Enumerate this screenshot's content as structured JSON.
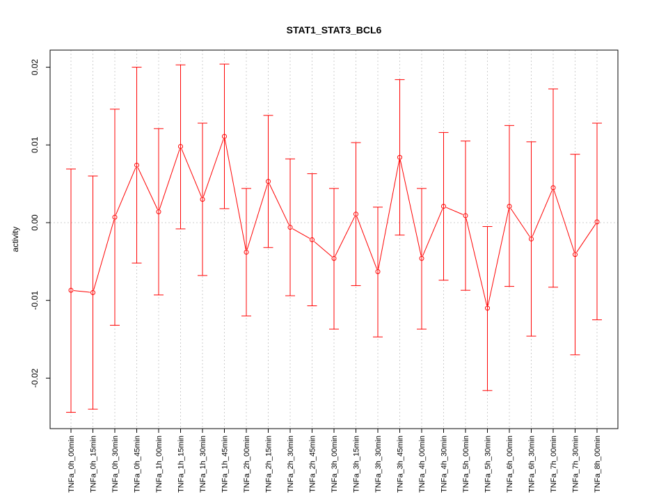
{
  "chart_data": {
    "type": "line",
    "title": "STAT1_STAT3_BCL6",
    "xlabel": "",
    "ylabel": "activity",
    "categories": [
      "TNFa_0h_00min",
      "TNFa_0h_15min",
      "TNFa_0h_30min",
      "TNFa_0h_45min",
      "TNFa_1h_00min",
      "TNFa_1h_15min",
      "TNFa_1h_30min",
      "TNFa_1h_45min",
      "TNFa_2h_00min",
      "TNFa_2h_15min",
      "TNFa_2h_30min",
      "TNFa_2h_45min",
      "TNFa_3h_00min",
      "TNFa_3h_15min",
      "TNFa_3h_30min",
      "TNFa_3h_45min",
      "TNFa_4h_00min",
      "TNFa_4h_30min",
      "TNFa_5h_00min",
      "TNFa_5h_30min",
      "TNFa_6h_00min",
      "TNFa_6h_30min",
      "TNFa_7h_00min",
      "TNFa_7h_30min",
      "TNFa_8h_00min"
    ],
    "series": [
      {
        "color": "#ff0000",
        "values": [
          -0.0087,
          -0.009,
          0.0007,
          0.0074,
          0.0014,
          0.0098,
          0.003,
          0.0111,
          -0.0038,
          0.0053,
          -0.0006,
          -0.0022,
          -0.0046,
          0.0011,
          -0.0063,
          0.0084,
          -0.0046,
          0.0021,
          0.0009,
          -0.011,
          0.0021,
          -0.0021,
          0.0045,
          -0.0041,
          0.0001
        ],
        "upper": [
          0.0069,
          0.006,
          0.0146,
          0.02,
          0.0121,
          0.0203,
          0.0128,
          0.0204,
          0.0044,
          0.0138,
          0.0082,
          0.0063,
          0.0044,
          0.0103,
          0.002,
          0.0184,
          0.0044,
          0.0116,
          0.0105,
          -0.0005,
          0.0125,
          0.0104,
          0.0172,
          0.0088,
          0.0128
        ],
        "lower": [
          -0.0244,
          -0.024,
          -0.0132,
          -0.0052,
          -0.0093,
          -0.0008,
          -0.0068,
          0.0018,
          -0.012,
          -0.0032,
          -0.0094,
          -0.0107,
          -0.0137,
          -0.0081,
          -0.0147,
          -0.0016,
          -0.0137,
          -0.0074,
          -0.0087,
          -0.0216,
          -0.0082,
          -0.0146,
          -0.0083,
          -0.017,
          -0.0125
        ]
      }
    ],
    "ylim": [
      -0.0265,
      0.0222
    ],
    "yticks": [
      -0.02,
      -0.01,
      0.0,
      0.01,
      0.02
    ],
    "ytick_labels": [
      "-0.02",
      "-0.01",
      "0.00",
      "0.01",
      "0.02"
    ],
    "grid": true,
    "legend": "none"
  }
}
